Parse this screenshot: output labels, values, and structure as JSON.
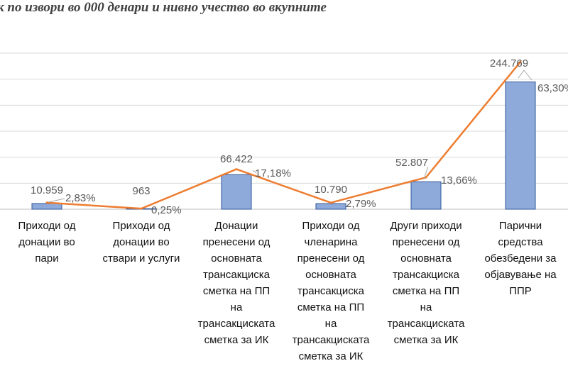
{
  "chart_data": {
    "type": "bar",
    "title": "к по извори во 000 денари и нивно учество во вкупните",
    "categories": [
      "Приходи од донации во пари",
      "Приходи од донации во ствари и услуги",
      "Донации пренесени од основната трансакциска сметка на ПП на трансакциската сметка за ИК",
      "Приходи од членарина пренесени од основната трансакциска сметка на ПП на трансакциската сметка за ИК",
      "Други приходи пренесени од основната трансакциска сметка на ПП на трансакциската сметка за ИК",
      "Парични средства обезбедени за објавување на ППР"
    ],
    "categories_lines": [
      [
        "Приходи од",
        "донации во",
        "пари"
      ],
      [
        "Приходи од",
        "донации во",
        "ствари и услуги"
      ],
      [
        "Донации",
        "пренесени од",
        "основната",
        "трансакциска",
        "сметка на ПП",
        "на",
        "трансакциската",
        "сметка за ИК"
      ],
      [
        "Приходи од",
        "членарина",
        "пренесени од",
        "основната",
        "трансакциска",
        "сметка на ПП",
        "на",
        "трансакциската",
        "сметка за ИК"
      ],
      [
        "Други приходи",
        "пренесени од",
        "основната",
        "трансакциска",
        "сметка на ПП",
        "на",
        "трансакциската",
        "сметка за ИК"
      ],
      [
        "Парични",
        "средства",
        "обезбедени за",
        "објавување на",
        "ППР"
      ]
    ],
    "series": [
      {
        "type": "bar",
        "values": [
          10959,
          963,
          66422,
          10790,
          52807,
          244769
        ],
        "labels": [
          "10.959",
          "963",
          "66.422",
          "10.790",
          "52.807",
          "244.769"
        ]
      },
      {
        "type": "line",
        "values": [
          2.83,
          0.25,
          17.18,
          2.79,
          13.66,
          63.3
        ],
        "labels": [
          "2,83%",
          "0,25%",
          "17,18%",
          "2,79%",
          "13,66%",
          "63,30%"
        ]
      }
    ],
    "ylim": [
      0,
      300000
    ],
    "ylim_secondary": [
      0,
      67
    ],
    "grid": true,
    "colors": {
      "bar_fill": "#8eaadb",
      "bar_stroke": "#2f5597",
      "line": "#ed7d31",
      "grid": "#d9d9d9",
      "label": "#595959"
    }
  }
}
